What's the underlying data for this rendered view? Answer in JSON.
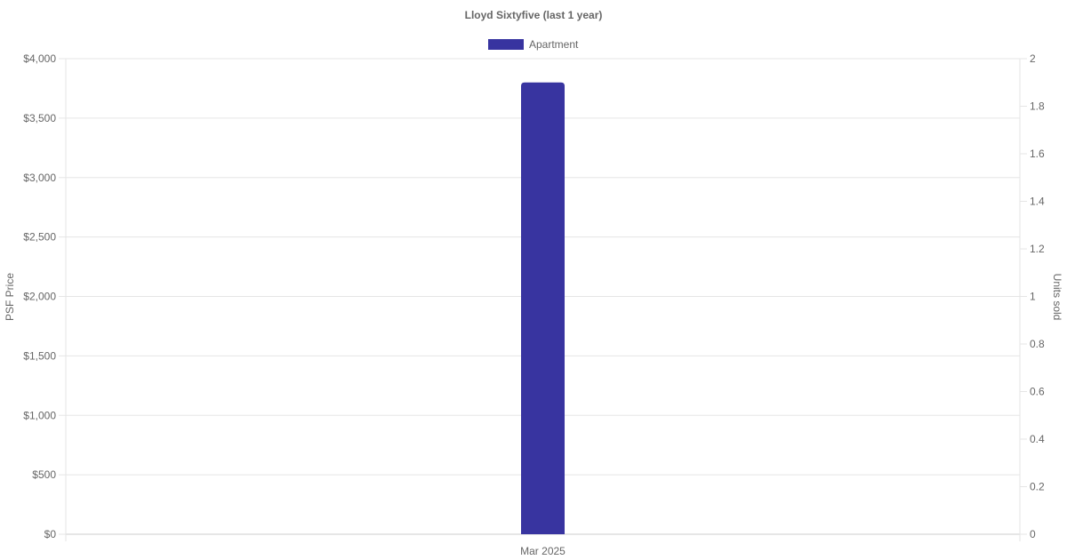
{
  "chart_data": {
    "type": "bar",
    "title": "Lloyd Sixtyfive (last 1 year)",
    "categories": [
      "Mar 2025"
    ],
    "series": [
      {
        "name": "Apartment",
        "values": [
          3800
        ],
        "color": "#3834a0",
        "axis": "left"
      }
    ],
    "ylabel": "PSF Price",
    "y2label": "Units sold",
    "ylim": [
      0,
      4000
    ],
    "yticks": [
      "$0",
      "$500",
      "$1,000",
      "$1,500",
      "$2,000",
      "$2,500",
      "$3,000",
      "$3,500",
      "$4,000"
    ],
    "y2lim": [
      0,
      2
    ],
    "y2ticks": [
      "0",
      "0.2",
      "0.4",
      "0.6",
      "0.8",
      "1",
      "1.2",
      "1.4",
      "1.6",
      "1.8",
      "2"
    ],
    "grid": true,
    "legend": "top"
  }
}
